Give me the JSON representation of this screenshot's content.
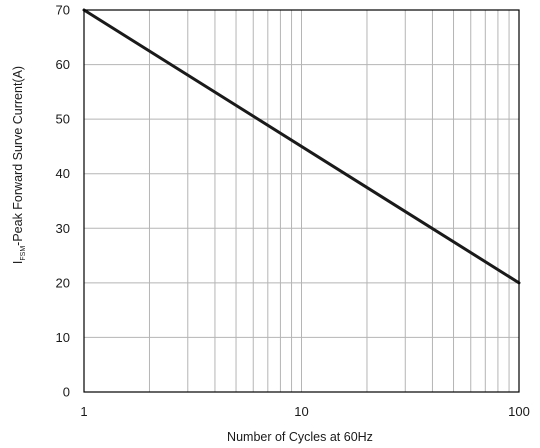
{
  "chart_data": {
    "type": "line",
    "xscale": "log",
    "xlim": [
      1,
      100
    ],
    "ylim": [
      0,
      70
    ],
    "xticks": [
      1,
      10,
      100
    ],
    "xtick_labels": [
      "1",
      "10",
      "100"
    ],
    "yticks": [
      0,
      10,
      20,
      30,
      40,
      50,
      60,
      70
    ],
    "ytick_labels": [
      "0",
      "10",
      "20",
      "30",
      "40",
      "50",
      "60",
      "70"
    ],
    "xlabel": "Number of Cycles at 60Hz",
    "ylabel": {
      "main": "I",
      "subscript": "FSM",
      "rest": "-Peak Forward Surve Current(A)"
    },
    "grid": true,
    "series": [
      {
        "x": [
          1,
          100
        ],
        "y": [
          70,
          20
        ]
      }
    ]
  }
}
